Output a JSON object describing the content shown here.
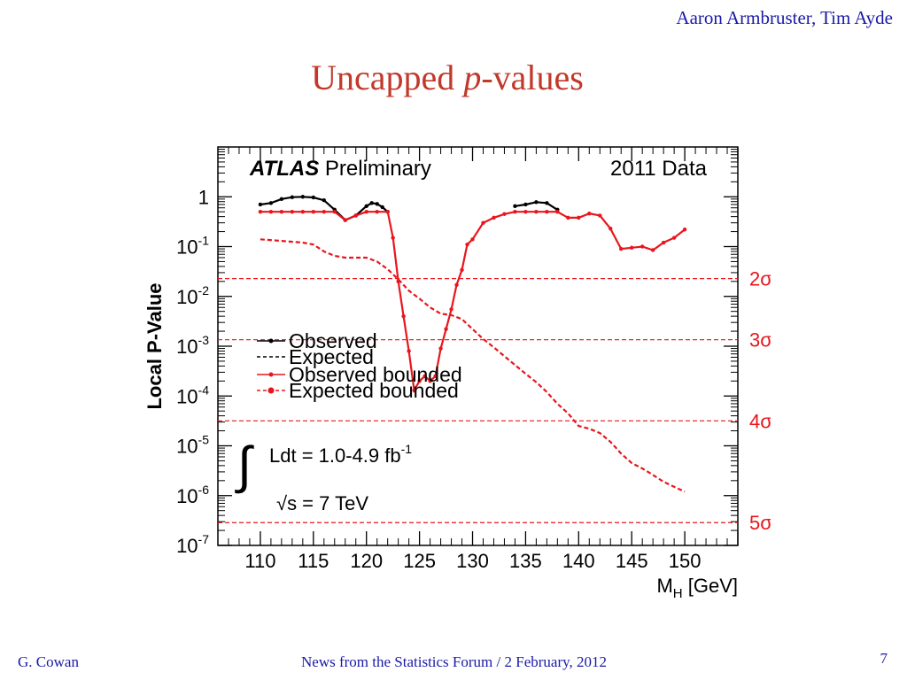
{
  "header": {
    "authors": "Aaron Armbruster, Tim Ayde",
    "title_prefix": "Uncapped ",
    "title_var": "p",
    "title_suffix": "-values"
  },
  "footer": {
    "left": "G. Cowan",
    "center": "News from the Statistics Forum / 2 February, 2012",
    "page": "7"
  },
  "colors": {
    "title": "#c0392b",
    "author": "#1a1aa8",
    "observed": "#000000",
    "bounded": "#e8161c",
    "sigma": "#e8161c"
  },
  "chart_data": {
    "type": "line",
    "experiment_label": "ATLAS",
    "experiment_sublabel": "Preliminary",
    "data_label": "2011 Data",
    "xlabel_main": "M",
    "xlabel_sub": "H",
    "xlabel_unit": " [GeV]",
    "ylabel": "Local P-Value",
    "log_y": true,
    "xlim": [
      106,
      155
    ],
    "ylim": [
      1e-07,
      10
    ],
    "x_ticks": [
      {
        "value": 110,
        "label": "110"
      },
      {
        "value": 115,
        "label": "115"
      },
      {
        "value": 120,
        "label": "120"
      },
      {
        "value": 125,
        "label": "125"
      },
      {
        "value": 130,
        "label": "130"
      },
      {
        "value": 135,
        "label": "135"
      },
      {
        "value": 140,
        "label": "140"
      },
      {
        "value": 145,
        "label": "145"
      },
      {
        "value": 150,
        "label": "150"
      }
    ],
    "y_ticks": [
      {
        "value": 1,
        "base": "1",
        "exp": ""
      },
      {
        "value": 0.1,
        "base": "10",
        "exp": "-1"
      },
      {
        "value": 0.01,
        "base": "10",
        "exp": "-2"
      },
      {
        "value": 0.001,
        "base": "10",
        "exp": "-3"
      },
      {
        "value": 0.0001,
        "base": "10",
        "exp": "-4"
      },
      {
        "value": 1e-05,
        "base": "10",
        "exp": "-5"
      },
      {
        "value": 1e-06,
        "base": "10",
        "exp": "-6"
      },
      {
        "value": 1e-07,
        "base": "10",
        "exp": "-7"
      }
    ],
    "sigma_lines": [
      {
        "label": "2σ",
        "p": 0.0228
      },
      {
        "label": "3σ",
        "p": 0.00135
      },
      {
        "label": "4σ",
        "p": 3.17e-05
      },
      {
        "label": "5σ",
        "p": 2.87e-07
      }
    ],
    "legend": [
      {
        "label": "Observed",
        "style": "solid-dot",
        "color": "#000000"
      },
      {
        "label": "Expected",
        "style": "dashed",
        "color": "#000000"
      },
      {
        "label": "Observed bounded",
        "style": "solid-dot",
        "color": "#e8161c"
      },
      {
        "label": "Expected bounded",
        "style": "dashed-dot",
        "color": "#e8161c"
      }
    ],
    "lumi_text": "Ldt = 1.0-4.9 fb",
    "lumi_exp": "-1",
    "energy_text": "s = 7 TeV",
    "series": [
      {
        "name": "Observed",
        "color": "#000000",
        "style": "solid",
        "x": [
          110,
          111,
          112,
          113,
          114,
          115,
          116,
          117,
          118,
          119,
          120,
          120.5,
          121,
          121.5,
          122,
          134,
          135,
          136,
          137,
          138
        ],
        "y": [
          0.7,
          0.75,
          0.9,
          0.98,
          1.0,
          0.97,
          0.85,
          0.55,
          0.34,
          0.42,
          0.65,
          0.75,
          0.72,
          0.62,
          0.5,
          0.65,
          0.7,
          0.78,
          0.75,
          0.55
        ],
        "segments": [
          [
            0,
            14
          ],
          [
            15,
            19
          ]
        ]
      },
      {
        "name": "Observed bounded",
        "color": "#e8161c",
        "style": "solid",
        "x": [
          110,
          111,
          112,
          113,
          114,
          115,
          116,
          117,
          118,
          119,
          120,
          121,
          122,
          122.5,
          123,
          123.5,
          124,
          124.5,
          125,
          125.5,
          126,
          126.5,
          127,
          127.5,
          128,
          128.5,
          129,
          129.5,
          130,
          131,
          132,
          133,
          134,
          135,
          136,
          137,
          138,
          139,
          140,
          141,
          142,
          143,
          144,
          145,
          146,
          147,
          148,
          149,
          150
        ],
        "y": [
          0.5,
          0.5,
          0.5,
          0.5,
          0.5,
          0.5,
          0.5,
          0.5,
          0.34,
          0.42,
          0.5,
          0.5,
          0.5,
          0.15,
          0.02,
          0.004,
          0.0008,
          0.00013,
          0.0002,
          0.00025,
          0.0002,
          0.00025,
          0.0009,
          0.0022,
          0.0055,
          0.017,
          0.034,
          0.11,
          0.14,
          0.3,
          0.38,
          0.45,
          0.5,
          0.5,
          0.5,
          0.5,
          0.5,
          0.38,
          0.38,
          0.46,
          0.42,
          0.23,
          0.09,
          0.095,
          0.1,
          0.085,
          0.12,
          0.15,
          0.22
        ]
      },
      {
        "name": "Expected bounded",
        "color": "#e8161c",
        "style": "dashed",
        "x": [
          110,
          112,
          114,
          115,
          116,
          117,
          118,
          120,
          121,
          122,
          123,
          124,
          125,
          126,
          127,
          128,
          129,
          130,
          131,
          132,
          133,
          134,
          135,
          136,
          137,
          138,
          139,
          140,
          141,
          142,
          143,
          144,
          145,
          146,
          147,
          148,
          149,
          150
        ],
        "y": [
          0.14,
          0.13,
          0.12,
          0.11,
          0.08,
          0.065,
          0.06,
          0.06,
          0.05,
          0.035,
          0.022,
          0.013,
          0.009,
          0.006,
          0.0045,
          0.0042,
          0.0035,
          0.0022,
          0.0014,
          0.00095,
          0.00063,
          0.00042,
          0.00028,
          0.00019,
          0.00012,
          7e-05,
          4.5e-05,
          2.5e-05,
          2.2e-05,
          1.8e-05,
          1.2e-05,
          7e-06,
          4.5e-06,
          3.5e-06,
          2.6e-06,
          1.9e-06,
          1.5e-06,
          1.2e-06
        ]
      }
    ]
  }
}
